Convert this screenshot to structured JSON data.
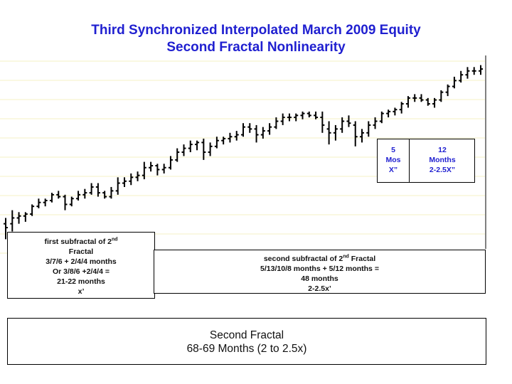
{
  "title_line1": "Third Synchronized Interpolated March 2009 Equity",
  "title_line2": "Second Fractal Nonlinearity",
  "colors": {
    "title": "#1f1fd0",
    "bars": "#000000",
    "grid": "#f6f2c4"
  },
  "annotations": {
    "sub1": {
      "line1a": "first subfractal of 2",
      "line1sup": "nd",
      "line2": "Fractal",
      "line3": "3/7/6 + 2/4/4 months",
      "line4": "Or 3/8/6 +2/4/4 =",
      "line5": "21-22 months",
      "line6": "x’"
    },
    "sub2": {
      "line1a": "second subfractal of 2",
      "line1sup": "nd",
      "line1b": " Fractal",
      "line2": "5/13/10/8 months + 5/12 months  =",
      "line3": "48 months",
      "line4": "2-2.5x’"
    },
    "mos5": {
      "line1": "5",
      "line2": "Mos",
      "line3": "X”"
    },
    "mos12": {
      "line1": "12",
      "line2": "Months",
      "line3": "2-2.5X”"
    },
    "second": {
      "line1": "Second Fractal",
      "line2": "68-69 Months (2 to 2.5x)"
    }
  },
  "chart_data": {
    "type": "ohlc",
    "title": "Third Synchronized Interpolated March 2009 Equity",
    "subtitle": "Second Fractal Nonlinearity",
    "grid": true,
    "ylim": [
      0,
      100
    ],
    "bars": [
      {
        "o": 13,
        "h": 16,
        "l": 5,
        "c": 11
      },
      {
        "o": 13,
        "h": 20,
        "l": 9,
        "c": 16
      },
      {
        "o": 16,
        "h": 19,
        "l": 13,
        "c": 17
      },
      {
        "o": 17,
        "h": 19,
        "l": 14,
        "c": 18
      },
      {
        "o": 18,
        "h": 23,
        "l": 17,
        "c": 22
      },
      {
        "o": 22,
        "h": 26,
        "l": 21,
        "c": 24
      },
      {
        "o": 24,
        "h": 26,
        "l": 22,
        "c": 25
      },
      {
        "o": 25,
        "h": 29,
        "l": 24,
        "c": 28
      },
      {
        "o": 28,
        "h": 30,
        "l": 26,
        "c": 27
      },
      {
        "o": 27,
        "h": 28,
        "l": 20,
        "c": 23
      },
      {
        "o": 23,
        "h": 27,
        "l": 22,
        "c": 26
      },
      {
        "o": 26,
        "h": 30,
        "l": 25,
        "c": 28
      },
      {
        "o": 28,
        "h": 31,
        "l": 26,
        "c": 29
      },
      {
        "o": 29,
        "h": 34,
        "l": 28,
        "c": 32
      },
      {
        "o": 32,
        "h": 34,
        "l": 27,
        "c": 29
      },
      {
        "o": 29,
        "h": 30,
        "l": 26,
        "c": 27
      },
      {
        "o": 27,
        "h": 32,
        "l": 26,
        "c": 30
      },
      {
        "o": 30,
        "h": 37,
        "l": 28,
        "c": 34
      },
      {
        "o": 34,
        "h": 37,
        "l": 32,
        "c": 35
      },
      {
        "o": 35,
        "h": 39,
        "l": 33,
        "c": 37
      },
      {
        "o": 37,
        "h": 40,
        "l": 35,
        "c": 38
      },
      {
        "o": 38,
        "h": 45,
        "l": 36,
        "c": 42
      },
      {
        "o": 42,
        "h": 45,
        "l": 40,
        "c": 43
      },
      {
        "o": 43,
        "h": 44,
        "l": 38,
        "c": 41
      },
      {
        "o": 41,
        "h": 44,
        "l": 39,
        "c": 42
      },
      {
        "o": 42,
        "h": 48,
        "l": 41,
        "c": 46
      },
      {
        "o": 46,
        "h": 52,
        "l": 45,
        "c": 50
      },
      {
        "o": 50,
        "h": 54,
        "l": 48,
        "c": 52
      },
      {
        "o": 52,
        "h": 56,
        "l": 50,
        "c": 54
      },
      {
        "o": 54,
        "h": 56,
        "l": 51,
        "c": 55
      },
      {
        "o": 55,
        "h": 57,
        "l": 46,
        "c": 50
      },
      {
        "o": 50,
        "h": 55,
        "l": 48,
        "c": 53
      },
      {
        "o": 53,
        "h": 58,
        "l": 52,
        "c": 56
      },
      {
        "o": 56,
        "h": 58,
        "l": 54,
        "c": 57
      },
      {
        "o": 57,
        "h": 60,
        "l": 55,
        "c": 58
      },
      {
        "o": 58,
        "h": 61,
        "l": 56,
        "c": 59
      },
      {
        "o": 59,
        "h": 65,
        "l": 58,
        "c": 63
      },
      {
        "o": 63,
        "h": 65,
        "l": 60,
        "c": 62
      },
      {
        "o": 62,
        "h": 64,
        "l": 55,
        "c": 59
      },
      {
        "o": 59,
        "h": 63,
        "l": 57,
        "c": 61
      },
      {
        "o": 61,
        "h": 65,
        "l": 59,
        "c": 63
      },
      {
        "o": 63,
        "h": 68,
        "l": 62,
        "c": 66
      },
      {
        "o": 66,
        "h": 70,
        "l": 64,
        "c": 68
      },
      {
        "o": 68,
        "h": 70,
        "l": 66,
        "c": 68
      },
      {
        "o": 68,
        "h": 70,
        "l": 66,
        "c": 69
      },
      {
        "o": 69,
        "h": 71,
        "l": 67,
        "c": 70
      },
      {
        "o": 70,
        "h": 71,
        "l": 68,
        "c": 69
      },
      {
        "o": 69,
        "h": 71,
        "l": 67,
        "c": 68
      },
      {
        "o": 68,
        "h": 71,
        "l": 60,
        "c": 64
      },
      {
        "o": 62,
        "h": 66,
        "l": 54,
        "c": 60
      },
      {
        "o": 60,
        "h": 64,
        "l": 56,
        "c": 62
      },
      {
        "o": 62,
        "h": 68,
        "l": 60,
        "c": 66
      },
      {
        "o": 66,
        "h": 69,
        "l": 63,
        "c": 65
      },
      {
        "o": 64,
        "h": 66,
        "l": 53,
        "c": 58
      },
      {
        "o": 58,
        "h": 62,
        "l": 55,
        "c": 60
      },
      {
        "o": 60,
        "h": 66,
        "l": 58,
        "c": 64
      },
      {
        "o": 64,
        "h": 68,
        "l": 62,
        "c": 66
      },
      {
        "o": 66,
        "h": 71,
        "l": 65,
        "c": 70
      },
      {
        "o": 70,
        "h": 72,
        "l": 68,
        "c": 71
      },
      {
        "o": 71,
        "h": 73,
        "l": 69,
        "c": 72
      },
      {
        "o": 72,
        "h": 76,
        "l": 70,
        "c": 75
      },
      {
        "o": 75,
        "h": 79,
        "l": 73,
        "c": 78
      },
      {
        "o": 78,
        "h": 80,
        "l": 76,
        "c": 78
      },
      {
        "o": 78,
        "h": 80,
        "l": 76,
        "c": 77
      },
      {
        "o": 77,
        "h": 78,
        "l": 74,
        "c": 75
      },
      {
        "o": 75,
        "h": 78,
        "l": 73,
        "c": 77
      },
      {
        "o": 77,
        "h": 82,
        "l": 76,
        "c": 81
      },
      {
        "o": 81,
        "h": 85,
        "l": 79,
        "c": 84
      },
      {
        "o": 84,
        "h": 89,
        "l": 83,
        "c": 87
      },
      {
        "o": 87,
        "h": 92,
        "l": 86,
        "c": 90
      },
      {
        "o": 90,
        "h": 94,
        "l": 88,
        "c": 92
      },
      {
        "o": 92,
        "h": 94,
        "l": 90,
        "c": 92
      },
      {
        "o": 92,
        "h": 95,
        "l": 90,
        "c": 93
      }
    ]
  }
}
